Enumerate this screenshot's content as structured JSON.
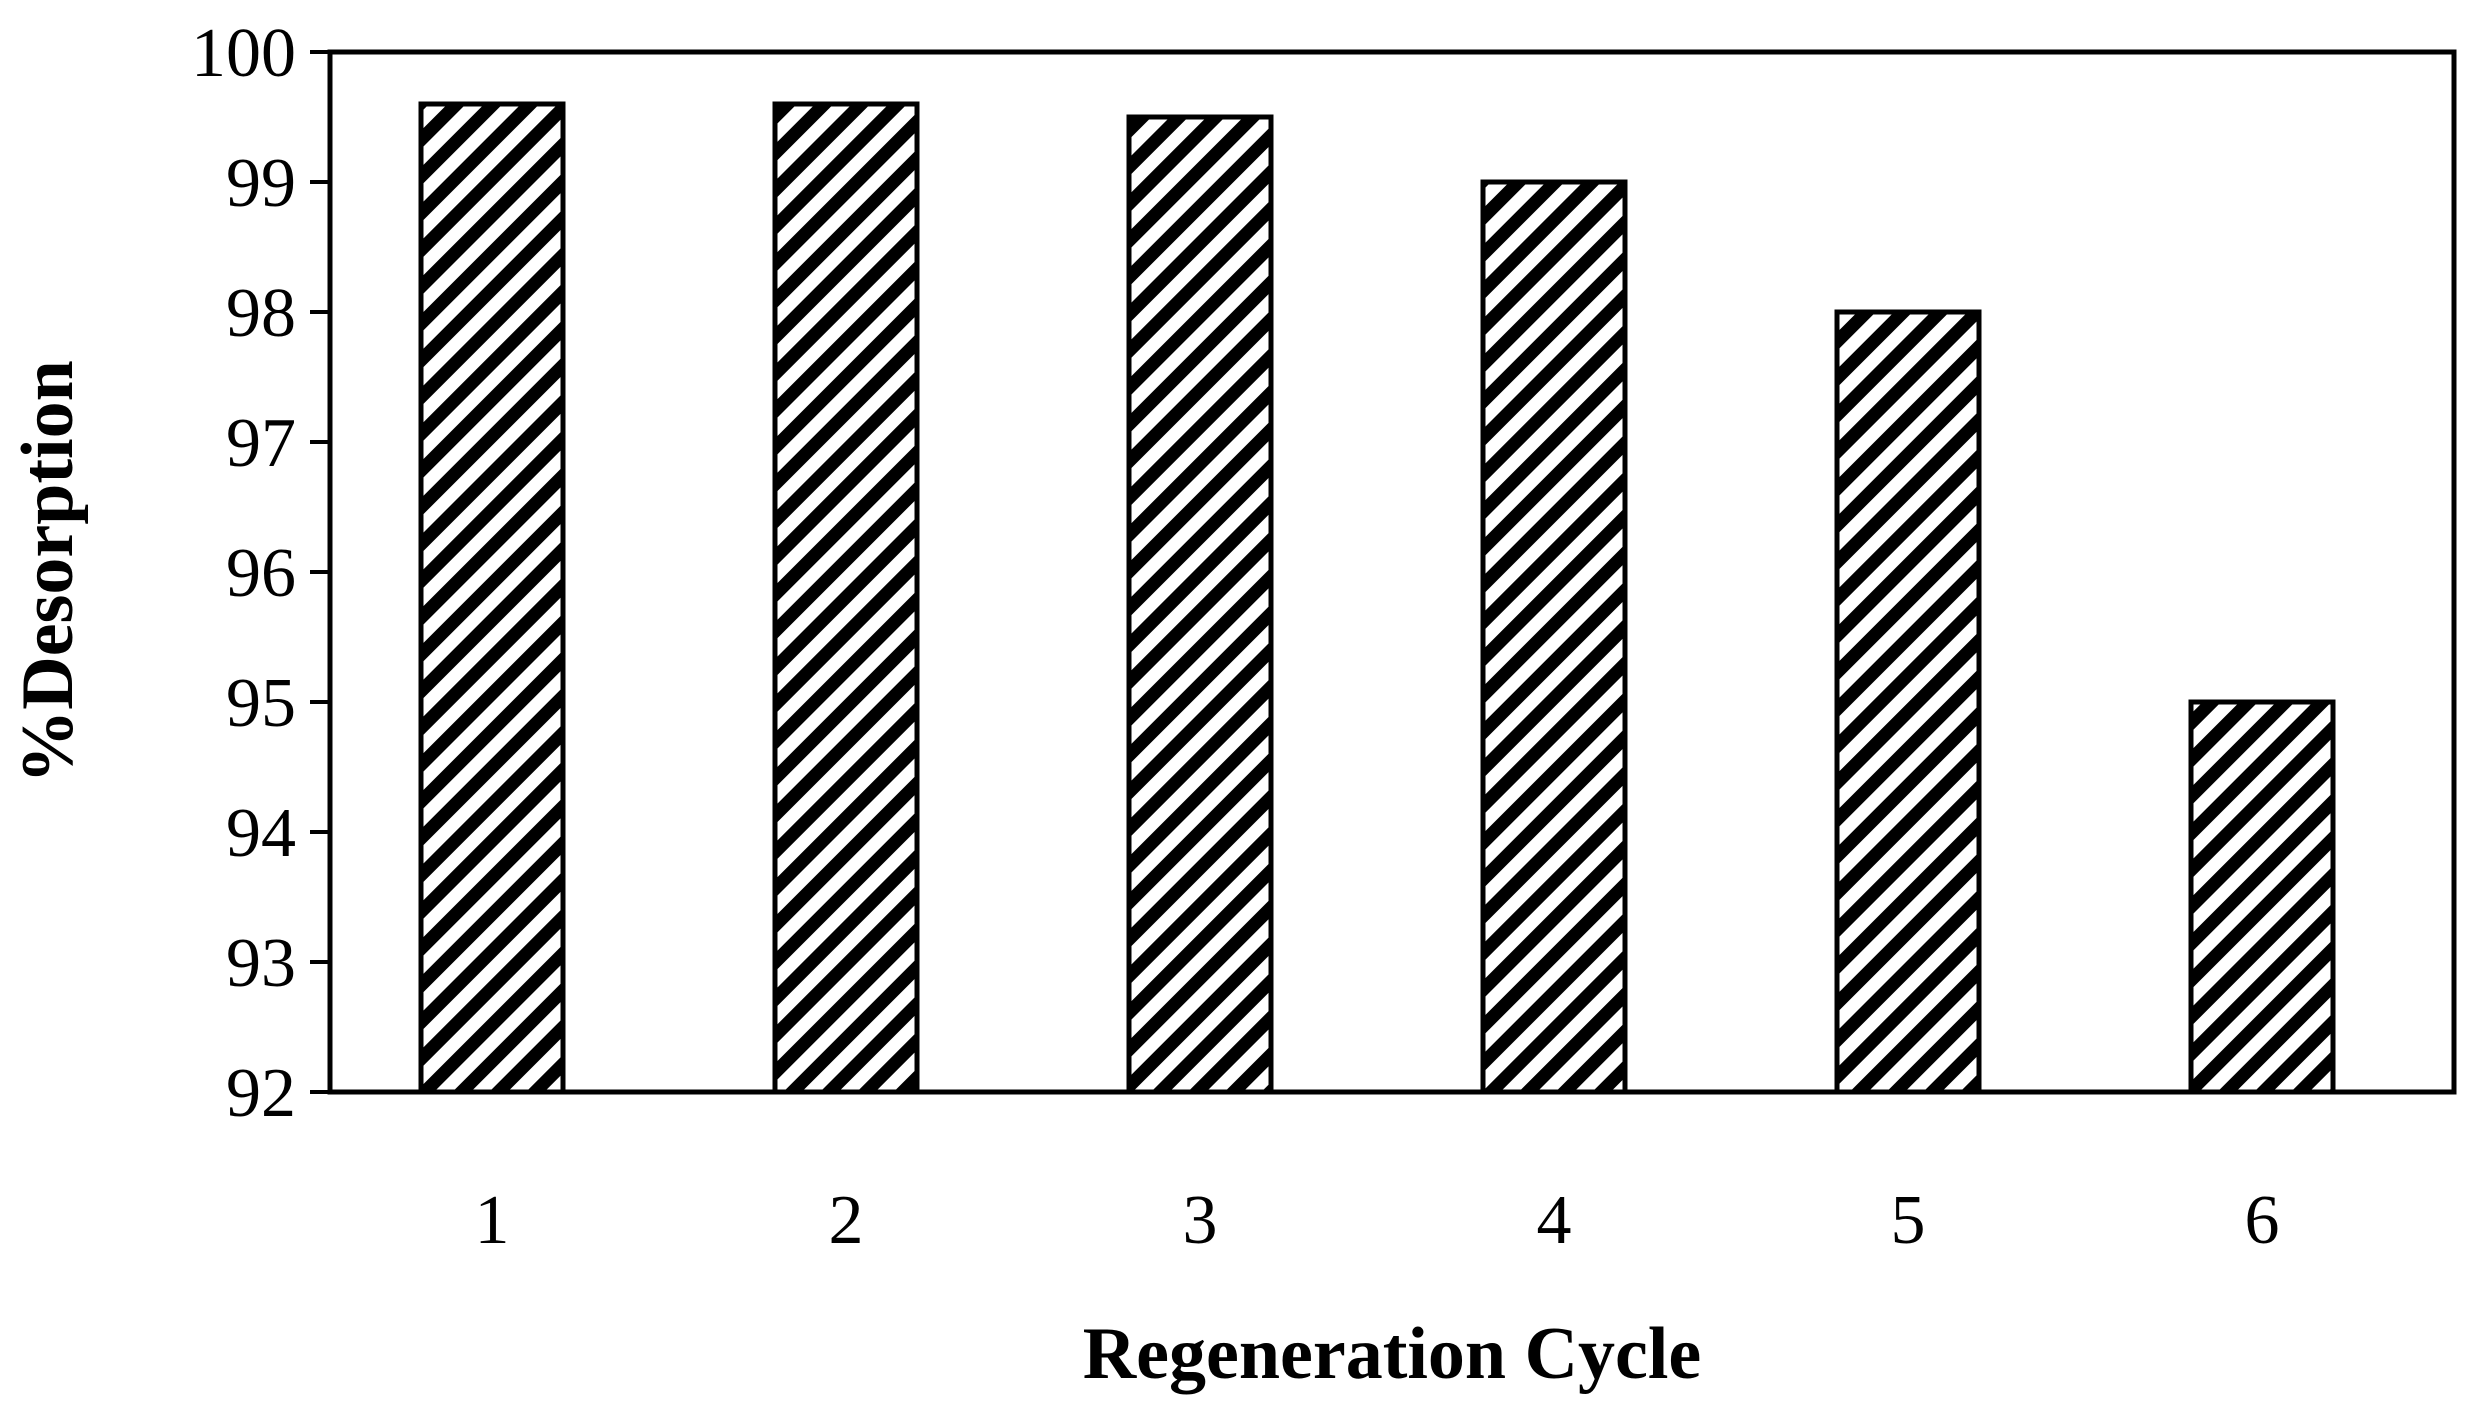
{
  "chart_data": {
    "type": "bar",
    "title": "",
    "xlabel": "Regeneration Cycle",
    "ylabel": "%Desorption",
    "categories": [
      "1",
      "2",
      "3",
      "4",
      "5",
      "6"
    ],
    "values": [
      99.6,
      99.6,
      99.5,
      99.0,
      98.0,
      95.0
    ],
    "ylim": [
      92,
      100
    ],
    "yticks": [
      "92",
      "93",
      "94",
      "95",
      "96",
      "97",
      "98",
      "99",
      "100"
    ],
    "grid": false,
    "legend": "none",
    "bar_fill": "diagonal hatch",
    "colors": {
      "bar_stroke": "#000000",
      "hatch": "#000000",
      "background": "#ffffff",
      "axis": "#000000"
    }
  }
}
